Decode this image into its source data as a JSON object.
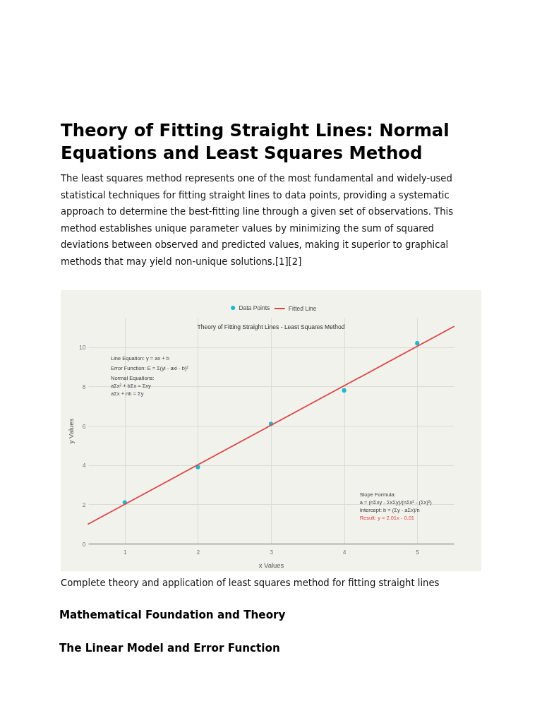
{
  "chart_data": {
    "type": "scatter",
    "title": "Theory of Fitting Straight Lines - Least Squares Method",
    "xlabel": "x Values",
    "ylabel": "y Values",
    "series": [
      {
        "name": "Data Points",
        "color": "#1fb8cd",
        "marker": "circle",
        "x": [
          1,
          2,
          3,
          4,
          5
        ],
        "values": [
          2.1,
          3.9,
          6.1,
          7.8,
          10.2
        ]
      },
      {
        "name": "Fitted Line",
        "type": "line",
        "color": "#db4545",
        "marker": "none",
        "line_style": "solid",
        "x": [
          0.5,
          5.5
        ],
        "values": [
          1.0,
          11.05
        ]
      }
    ],
    "xlim": [
      0.5,
      5.5
    ],
    "ylim": [
      0,
      11.5
    ],
    "xticks": [
      1,
      2,
      3,
      4,
      5
    ],
    "yticks": [
      0,
      2,
      4,
      6,
      8,
      10
    ],
    "grid": true,
    "legend": "top",
    "annotations": [
      "Theory of Fitting Straight Lines: Normal Equations and Least Squares Method",
      "The least squares method represents one of the most fundamental and widely-used statistical techniques for fitting straight lines to data points, providing a systematic approach to determine the best-fitting line through a given set of observations. This method establishes unique parameter values by minimizing the sum of squared deviations between observed and predicted values, making it superior to graphical methods that may yield non-unique solutions.[1][2]",
      "Complete theory and application of least squares method for fitting straight lines",
      "Mathematical Foundation and Theory",
      "The Linear Model and Error Function",
      "Line Equation: y = ax + b",
      "Error Function: E = Σ(yi - axi - b)²",
      "Normal Equations:",
      "aΣx² + bΣx = Σxy",
      "aΣx + nb = Σy",
      "Slope Formula:",
      "a = (nΣxy - ΣxΣy)/(nΣx² - (Σx)²)",
      "Intercept: b = (Σy - aΣx)/n",
      "Result: y = 2.01x - 0.01"
    ]
  }
}
